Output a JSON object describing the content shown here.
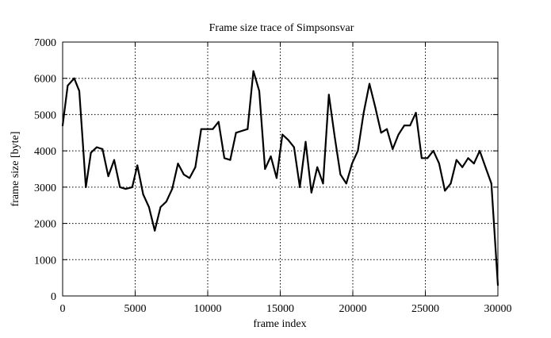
{
  "chart_data": {
    "type": "line",
    "title": "Frame size trace of Simpsonsvar",
    "xlabel": "frame index",
    "ylabel": "frame size [byte]",
    "xlim": [
      0,
      30000
    ],
    "ylim": [
      0,
      7000
    ],
    "xticks": [
      0,
      5000,
      10000,
      15000,
      20000,
      25000,
      30000
    ],
    "yticks": [
      0,
      1000,
      2000,
      3000,
      4000,
      5000,
      6000,
      7000
    ],
    "xtick_labels": [
      "0",
      "5000",
      "10000",
      "15000",
      "20000",
      "25000",
      "30000"
    ],
    "ytick_labels": [
      "0",
      "1000",
      "2000",
      "3000",
      "4000",
      "5000",
      "6000",
      "7000"
    ],
    "grid": true,
    "line_color": "#000000",
    "series": [
      {
        "x": [
          0,
          350,
          800,
          1150,
          1600,
          1950,
          2350,
          2750,
          3150,
          3550,
          3950,
          4350,
          4800,
          5150,
          5550,
          5950,
          6350,
          6750,
          7150,
          7550,
          7950,
          8350,
          8750,
          9150,
          9550,
          9950,
          10350,
          10750,
          11150,
          11550,
          11950,
          12350,
          12750,
          13150,
          13550,
          13950,
          14350,
          14750,
          15150,
          15550,
          15950,
          16350,
          16750,
          17150,
          17550,
          17950,
          18350,
          18750,
          19150,
          19550,
          19950,
          20350,
          20750,
          21150,
          21550,
          21950,
          22350,
          22750,
          23150,
          23550,
          23950,
          24350,
          24750,
          25150,
          25550,
          25950,
          26350,
          26750,
          27150,
          27550,
          27950,
          28350,
          28750,
          29150,
          29550,
          30000
        ],
        "y": [
          4700,
          5800,
          6000,
          5650,
          3000,
          3950,
          4100,
          4050,
          3300,
          3750,
          3000,
          2950,
          3000,
          3600,
          2800,
          2450,
          1800,
          2450,
          2600,
          2950,
          3650,
          3350,
          3250,
          3550,
          4600,
          4600,
          4600,
          4800,
          3800,
          3750,
          4500,
          4550,
          4600,
          6200,
          5650,
          3500,
          3850,
          3250,
          4450,
          4300,
          4100,
          3000,
          4250,
          2850,
          3550,
          3100,
          5550,
          4400,
          3350,
          3100,
          3650,
          4000,
          5050,
          5850,
          5200,
          4500,
          4600,
          4050,
          4450,
          4700,
          4700,
          5050,
          3800,
          3800,
          4000,
          3650,
          2900,
          3100,
          3750,
          3550,
          3800,
          3650,
          4000,
          3550,
          3100,
          300
        ]
      }
    ]
  }
}
